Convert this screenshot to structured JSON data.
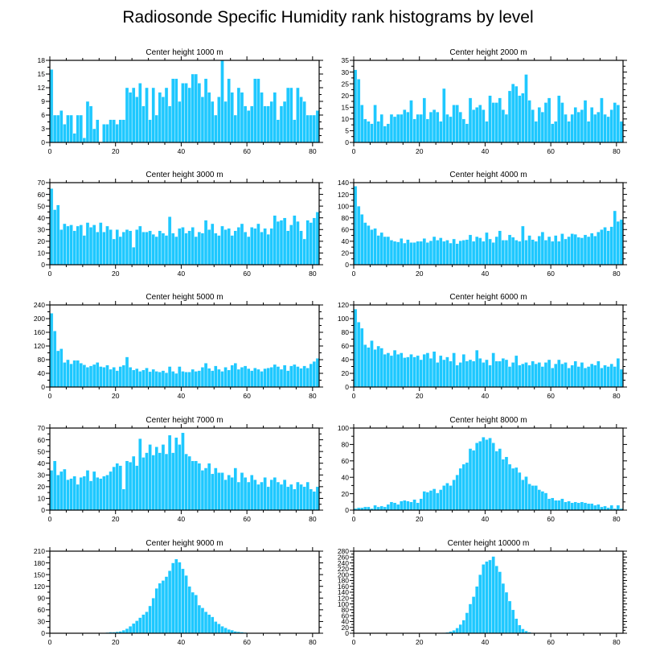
{
  "title": "Radiosonde Specific Humidity rank histograms by level",
  "colors": {
    "bar": "#1ec8ff",
    "bar_edge": "#ffffff",
    "axis": "#000000"
  },
  "chart_data": [
    {
      "type": "bar",
      "title": "Center height 1000 m",
      "xlim": [
        0,
        82
      ],
      "xticks": [
        0,
        20,
        40,
        60,
        80
      ],
      "ylim": [
        0,
        18
      ],
      "yticks": [
        0,
        3,
        6,
        9,
        12,
        15,
        18
      ],
      "values": [
        16,
        6,
        6,
        7,
        4,
        6,
        6,
        2,
        6,
        6,
        1,
        9,
        8,
        3,
        5,
        0,
        4,
        4,
        5,
        5,
        4,
        5,
        5,
        12,
        11,
        12,
        10,
        13,
        8,
        12,
        5,
        12,
        6,
        11,
        10,
        12,
        8,
        14,
        14,
        9,
        13,
        13,
        12,
        15,
        15,
        13,
        10,
        14,
        11,
        9,
        6,
        10,
        18,
        9,
        14,
        11,
        6,
        12,
        11,
        8,
        7,
        8,
        14,
        14,
        11,
        8,
        8,
        9,
        11,
        5,
        8,
        9,
        12,
        12,
        5,
        12,
        10,
        9,
        6,
        6,
        6,
        7
      ]
    },
    {
      "type": "bar",
      "title": "Center height 2000 m",
      "xlim": [
        0,
        82
      ],
      "xticks": [
        0,
        20,
        40,
        60,
        80
      ],
      "ylim": [
        0,
        35
      ],
      "yticks": [
        0,
        5,
        10,
        15,
        20,
        25,
        30,
        35
      ],
      "values": [
        31,
        27,
        16,
        10,
        9,
        8,
        16,
        9,
        12,
        7,
        8,
        12,
        11,
        12,
        12,
        14,
        13,
        18,
        10,
        12,
        12,
        19,
        10,
        13,
        14,
        13,
        9,
        23,
        12,
        11,
        16,
        16,
        13,
        10,
        8,
        19,
        14,
        15,
        16,
        14,
        9,
        20,
        17,
        17,
        19,
        14,
        12,
        22,
        25,
        24,
        20,
        21,
        29,
        18,
        14,
        9,
        15,
        13,
        17,
        19,
        8,
        9,
        20,
        17,
        12,
        9,
        12,
        15,
        13,
        14,
        18,
        9,
        15,
        12,
        13,
        19,
        12,
        11,
        14,
        17,
        16,
        9
      ]
    },
    {
      "type": "bar",
      "title": "Center height 3000 m",
      "xlim": [
        0,
        82
      ],
      "xticks": [
        0,
        20,
        40,
        60,
        80
      ],
      "ylim": [
        0,
        70
      ],
      "yticks": [
        0,
        10,
        20,
        30,
        40,
        50,
        60,
        70
      ],
      "values": [
        65,
        47,
        51,
        30,
        35,
        33,
        34,
        29,
        33,
        34,
        25,
        36,
        32,
        34,
        28,
        36,
        28,
        33,
        30,
        22,
        30,
        24,
        28,
        30,
        29,
        15,
        30,
        33,
        28,
        28,
        29,
        26,
        24,
        29,
        27,
        25,
        41,
        27,
        24,
        31,
        32,
        27,
        29,
        32,
        24,
        28,
        27,
        38,
        30,
        35,
        27,
        25,
        33,
        30,
        31,
        25,
        29,
        32,
        35,
        28,
        24,
        32,
        31,
        35,
        28,
        31,
        26,
        31,
        42,
        37,
        38,
        40,
        29,
        34,
        42,
        37,
        29,
        22,
        38,
        36,
        40,
        45
      ]
    },
    {
      "type": "bar",
      "title": "Center height 4000 m",
      "xlim": [
        0,
        82
      ],
      "xticks": [
        0,
        20,
        40,
        60,
        80
      ],
      "ylim": [
        0,
        140
      ],
      "yticks": [
        0,
        20,
        40,
        60,
        80,
        100,
        120,
        140
      ],
      "values": [
        134,
        100,
        86,
        72,
        67,
        60,
        62,
        50,
        55,
        48,
        48,
        42,
        40,
        39,
        45,
        37,
        43,
        38,
        38,
        40,
        40,
        45,
        38,
        41,
        48,
        42,
        46,
        40,
        42,
        37,
        44,
        36,
        41,
        42,
        43,
        51,
        40,
        48,
        46,
        40,
        55,
        44,
        38,
        48,
        58,
        42,
        42,
        51,
        47,
        42,
        40,
        66,
        42,
        50,
        43,
        40,
        49,
        56,
        42,
        48,
        40,
        50,
        40,
        53,
        44,
        48,
        53,
        52,
        47,
        46,
        51,
        48,
        54,
        49,
        56,
        60,
        64,
        58,
        65,
        92,
        74,
        77
      ]
    },
    {
      "type": "bar",
      "title": "Center height 5000 m",
      "xlim": [
        0,
        82
      ],
      "xticks": [
        0,
        20,
        40,
        60,
        80
      ],
      "ylim": [
        0,
        240
      ],
      "yticks": [
        0,
        40,
        80,
        120,
        160,
        200,
        240
      ],
      "values": [
        216,
        164,
        106,
        112,
        72,
        80,
        68,
        78,
        78,
        70,
        65,
        58,
        62,
        66,
        72,
        60,
        58,
        64,
        52,
        58,
        48,
        60,
        64,
        88,
        58,
        50,
        54,
        46,
        50,
        56,
        45,
        52,
        46,
        44,
        48,
        42,
        60,
        46,
        40,
        60,
        46,
        44,
        44,
        52,
        46,
        48,
        58,
        70,
        55,
        48,
        62,
        52,
        46,
        58,
        50,
        64,
        70,
        52,
        58,
        62,
        54,
        48,
        56,
        52,
        46,
        54,
        56,
        58,
        66,
        60,
        52,
        64,
        48,
        62,
        66,
        60,
        55,
        62,
        56,
        68,
        75,
        84
      ]
    },
    {
      "type": "bar",
      "title": "Center height 6000 m",
      "xlim": [
        0,
        82
      ],
      "xticks": [
        0,
        20,
        40,
        60,
        80
      ],
      "ylim": [
        0,
        120
      ],
      "yticks": [
        0,
        20,
        40,
        60,
        80,
        100,
        120
      ],
      "values": [
        114,
        95,
        86,
        62,
        58,
        68,
        55,
        60,
        57,
        48,
        50,
        46,
        54,
        48,
        50,
        43,
        44,
        48,
        44,
        46,
        40,
        48,
        50,
        42,
        52,
        36,
        46,
        40,
        44,
        38,
        50,
        32,
        36,
        48,
        38,
        40,
        38,
        54,
        42,
        36,
        40,
        32,
        50,
        38,
        38,
        42,
        40,
        30,
        36,
        46,
        32,
        34,
        36,
        32,
        38,
        34,
        36,
        30,
        36,
        40,
        28,
        34,
        40,
        34,
        36,
        28,
        32,
        38,
        30,
        36,
        28,
        30,
        34,
        32,
        38,
        28,
        32,
        30,
        34,
        30,
        42,
        26
      ]
    },
    {
      "type": "bar",
      "title": "Center height 7000 m",
      "xlim": [
        0,
        82
      ],
      "xticks": [
        0,
        20,
        40,
        60,
        80
      ],
      "ylim": [
        0,
        70
      ],
      "yticks": [
        0,
        10,
        20,
        30,
        40,
        50,
        60,
        70
      ],
      "values": [
        34,
        42,
        30,
        33,
        35,
        26,
        27,
        29,
        22,
        28,
        29,
        34,
        25,
        33,
        28,
        27,
        29,
        30,
        33,
        37,
        40,
        38,
        18,
        42,
        41,
        46,
        38,
        61,
        45,
        49,
        56,
        47,
        54,
        49,
        56,
        48,
        64,
        49,
        62,
        56,
        66,
        48,
        46,
        42,
        42,
        40,
        34,
        36,
        40,
        31,
        36,
        32,
        32,
        26,
        30,
        28,
        36,
        24,
        32,
        28,
        24,
        30,
        26,
        22,
        24,
        28,
        20,
        26,
        28,
        24,
        22,
        26,
        20,
        22,
        18,
        24,
        22,
        20,
        24,
        18,
        16,
        20
      ]
    },
    {
      "type": "bar",
      "title": "Center height 8000 m",
      "xlim": [
        0,
        82
      ],
      "xticks": [
        0,
        20,
        40,
        60,
        80
      ],
      "ylim": [
        0,
        100
      ],
      "yticks": [
        0,
        20,
        40,
        60,
        80,
        100
      ],
      "values": [
        2,
        3,
        3,
        4,
        4,
        2,
        6,
        4,
        5,
        4,
        7,
        10,
        9,
        7,
        11,
        12,
        11,
        10,
        13,
        9,
        14,
        23,
        22,
        24,
        26,
        21,
        25,
        30,
        33,
        30,
        37,
        43,
        51,
        56,
        58,
        75,
        73,
        82,
        84,
        89,
        86,
        88,
        82,
        72,
        75,
        62,
        65,
        56,
        51,
        52,
        46,
        37,
        41,
        32,
        30,
        30,
        25,
        23,
        21,
        14,
        15,
        12,
        12,
        14,
        10,
        11,
        9,
        10,
        9,
        10,
        9,
        8,
        8,
        6,
        7,
        4,
        5,
        3,
        6,
        2,
        6,
        2
      ]
    },
    {
      "type": "bar",
      "title": "Center height 9000 m",
      "xlim": [
        0,
        82
      ],
      "xticks": [
        0,
        20,
        40,
        60,
        80
      ],
      "ylim": [
        0,
        210
      ],
      "yticks": [
        0,
        30,
        60,
        90,
        120,
        150,
        180,
        210
      ],
      "values": [
        0,
        0,
        0,
        0,
        0,
        0,
        0,
        0,
        0,
        0,
        0,
        0,
        0,
        0,
        1,
        1,
        1,
        2,
        3,
        3,
        4,
        5,
        8,
        12,
        18,
        25,
        32,
        40,
        48,
        55,
        70,
        90,
        115,
        128,
        135,
        145,
        160,
        180,
        190,
        182,
        165,
        148,
        120,
        105,
        98,
        72,
        65,
        55,
        48,
        42,
        30,
        24,
        18,
        14,
        10,
        8,
        5,
        4,
        3,
        2,
        1,
        1,
        1,
        0,
        0,
        0,
        0,
        0,
        0,
        0,
        0,
        0,
        0,
        0,
        0,
        0,
        0,
        0,
        0,
        0,
        0,
        0
      ]
    },
    {
      "type": "bar",
      "title": "Center height 10000 m",
      "xlim": [
        0,
        82
      ],
      "xticks": [
        0,
        20,
        40,
        60,
        80
      ],
      "ylim": [
        0,
        280
      ],
      "yticks": [
        0,
        20,
        40,
        60,
        80,
        100,
        120,
        140,
        160,
        180,
        200,
        220,
        240,
        260,
        280
      ],
      "values": [
        0,
        0,
        0,
        0,
        0,
        0,
        0,
        0,
        0,
        0,
        0,
        0,
        0,
        0,
        0,
        0,
        0,
        0,
        0,
        0,
        0,
        0,
        0,
        0,
        0,
        1,
        1,
        2,
        3,
        6,
        10,
        18,
        30,
        45,
        70,
        100,
        125,
        160,
        200,
        235,
        245,
        250,
        262,
        230,
        210,
        170,
        140,
        110,
        80,
        50,
        28,
        15,
        8,
        4,
        2,
        1,
        1,
        0,
        0,
        0,
        0,
        0,
        0,
        0,
        0,
        0,
        0,
        0,
        0,
        0,
        0,
        0,
        0,
        0,
        0,
        0,
        0,
        0,
        0,
        0,
        0,
        0
      ]
    }
  ]
}
